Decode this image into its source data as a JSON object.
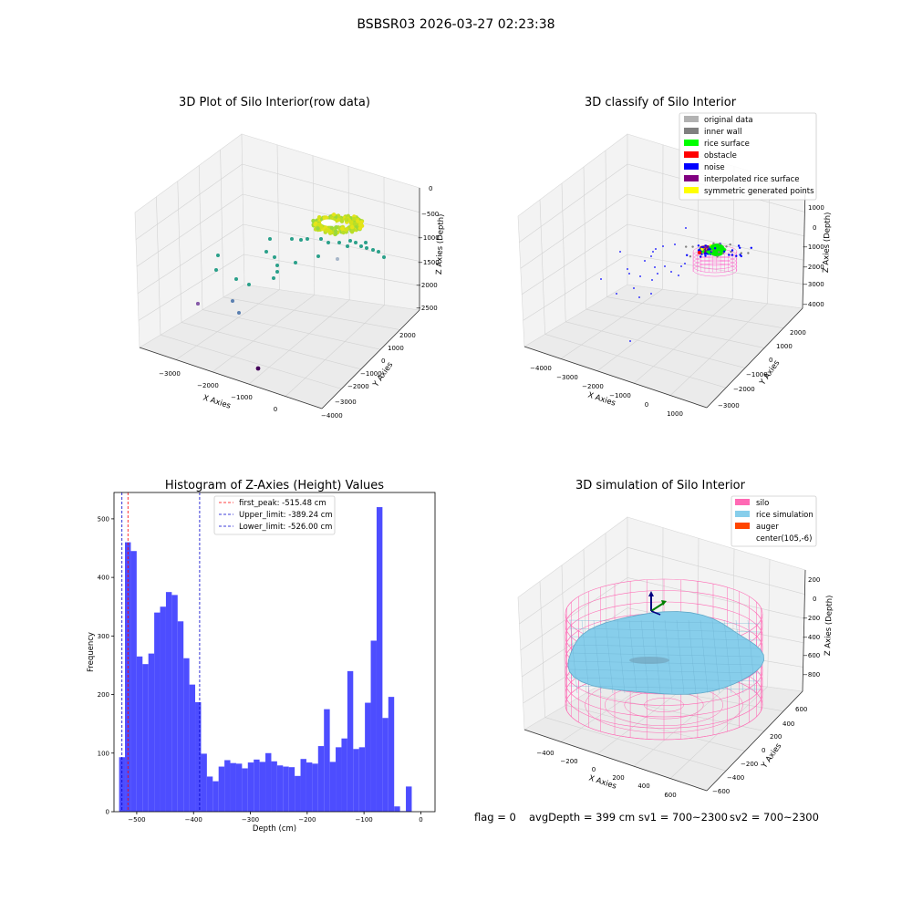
{
  "suptitle": "BSBSR03 2026-03-27 02:23:38",
  "panels": {
    "raw": {
      "title": "3D Plot of Silo Interior(row data)",
      "xlabel": "X Axies",
      "ylabel": "Y Axies",
      "zlabel": "Z Axies (Depth)",
      "xticks": [
        "−3000",
        "−2000",
        "−1000",
        "0"
      ],
      "yticks": [
        "2000",
        "1000",
        "0",
        "−1000",
        "−2000",
        "−3000",
        "−4000"
      ],
      "zticks": [
        "0",
        "−500",
        "−1000",
        "−1500",
        "−2000",
        "−2500"
      ]
    },
    "classify": {
      "title": "3D classify of Silo Interior",
      "xlabel": "X Axies",
      "ylabel": "Y Axies",
      "zlabel": "Z Axies (Depth)",
      "xticks": [
        "−4000",
        "−3000",
        "−2000",
        "−1000",
        "0",
        "1000"
      ],
      "yticks": [
        "2000",
        "1000",
        "0",
        "−1000",
        "−2000",
        "−3000"
      ],
      "zticks": [
        "1000",
        "0",
        "−1000",
        "−2000",
        "−3000",
        "−4000"
      ],
      "legend": [
        {
          "label": "original data",
          "color": "#b2b2b2"
        },
        {
          "label": "inner wall",
          "color": "#808080"
        },
        {
          "label": "rice surface",
          "color": "#00ff00"
        },
        {
          "label": "obstacle",
          "color": "#ff0000"
        },
        {
          "label": "noise",
          "color": "#0000ff"
        },
        {
          "label": "interpolated rice surface",
          "color": "#800080"
        },
        {
          "label": "symmetric generated points",
          "color": "#ffff00"
        }
      ]
    },
    "simulation": {
      "title": "3D simulation of Silo Interior",
      "xlabel": "X Axies",
      "ylabel": "Y Axies",
      "zlabel": "Z Axies (Depth)",
      "xticks": [
        "−400",
        "−200",
        "0",
        "200",
        "400",
        "600"
      ],
      "yticks": [
        "600",
        "400",
        "200",
        "0",
        "−200",
        "−400",
        "−600"
      ],
      "zticks": [
        "200",
        "0",
        "−200",
        "−400",
        "−600",
        "−800"
      ],
      "legend": [
        {
          "label": "silo",
          "color": "#ff69b4"
        },
        {
          "label": "rice simulation",
          "color": "#87ceeb"
        },
        {
          "label": "auger",
          "color": "#ff4500"
        },
        {
          "label": "center(105,-6)",
          "color": ""
        }
      ]
    }
  },
  "chart_data": {
    "type": "bar",
    "title": "Histogram of Z-Axies (Height) Values",
    "xlabel": "Depth (cm)",
    "ylabel": "Frequency",
    "xlim": [
      -540,
      25
    ],
    "ylim": [
      0,
      545
    ],
    "xticks": [
      -500,
      -400,
      -300,
      -200,
      -100,
      0
    ],
    "yticks": [
      0,
      100,
      200,
      300,
      400,
      500
    ],
    "bin_start": -531,
    "bin_width": 10.3,
    "values": [
      93,
      460,
      445,
      265,
      252,
      270,
      340,
      350,
      375,
      370,
      325,
      262,
      217,
      187,
      99,
      60,
      52,
      77,
      88,
      83,
      82,
      74,
      84,
      89,
      85,
      100,
      86,
      79,
      77,
      76,
      61,
      90,
      84,
      82,
      112,
      175,
      85,
      110,
      125,
      240,
      107,
      110,
      186,
      292,
      520,
      160,
      196,
      9,
      1,
      43
    ],
    "lines": [
      {
        "label": "first_peak: -515.48 cm",
        "x": -515.48,
        "color": "#ff0000"
      },
      {
        "label": "Upper_limit: -389.24 cm",
        "x": -389.24,
        "color": "#0000cc"
      },
      {
        "label": "Lower_limit: -526.00 cm",
        "x": -526.0,
        "color": "#0000cc"
      }
    ],
    "bar_color": "#4d4dff"
  },
  "footer": {
    "flag": "flag = 0",
    "avg": "avgDepth = 399 cm",
    "sv1": "sv1 = 700~2300",
    "sv2": "sv2 = 700~2300"
  }
}
